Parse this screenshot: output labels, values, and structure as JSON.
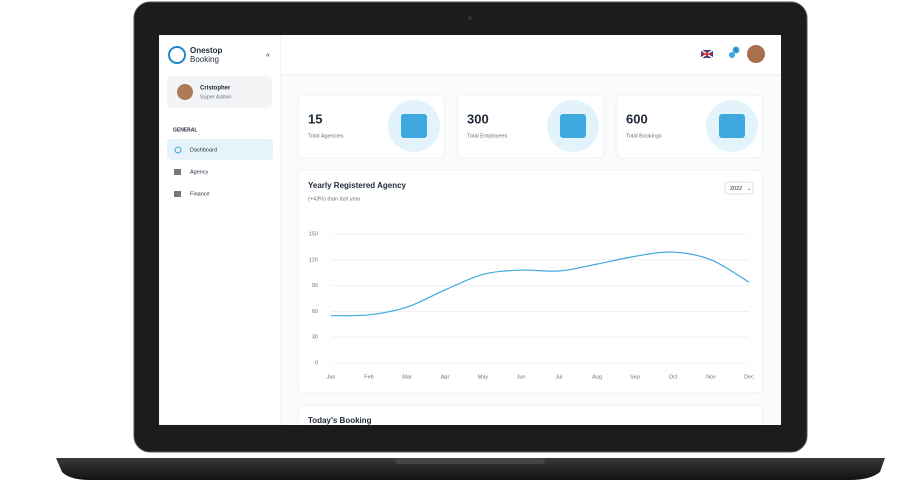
{
  "brand": {
    "line1": "Onestop",
    "line2": "Booking"
  },
  "notifications": 0,
  "user": {
    "name": "Cristopher",
    "role": "Super Admin"
  },
  "nav": {
    "section": "GENERAL",
    "items": [
      "Dashboard",
      "Agency",
      "Finance"
    ]
  },
  "stats": [
    {
      "value": 15,
      "label": "Total Agencies"
    },
    {
      "value": 300,
      "label": "Total Employees"
    },
    {
      "value": 600,
      "label": "Total Bookings"
    }
  ],
  "chart": {
    "type": "line",
    "title": "Yearly Registered Agency",
    "subtitle": "(+43%) than last year",
    "year": "2022",
    "categories": [
      "Jan",
      "Feb",
      "Mar",
      "Apr",
      "May",
      "Jun",
      "Jul",
      "Aug",
      "Sep",
      "Oct",
      "Nov",
      "Dec"
    ],
    "values": [
      55,
      56,
      65,
      85,
      103,
      108,
      107,
      115,
      124,
      129,
      120,
      94
    ],
    "ylim": [
      0,
      150
    ],
    "yticks": [
      0,
      30,
      60,
      90,
      120,
      150
    ],
    "grid": true,
    "color": "#3fa9df"
  },
  "section_title": "Today's Booking"
}
